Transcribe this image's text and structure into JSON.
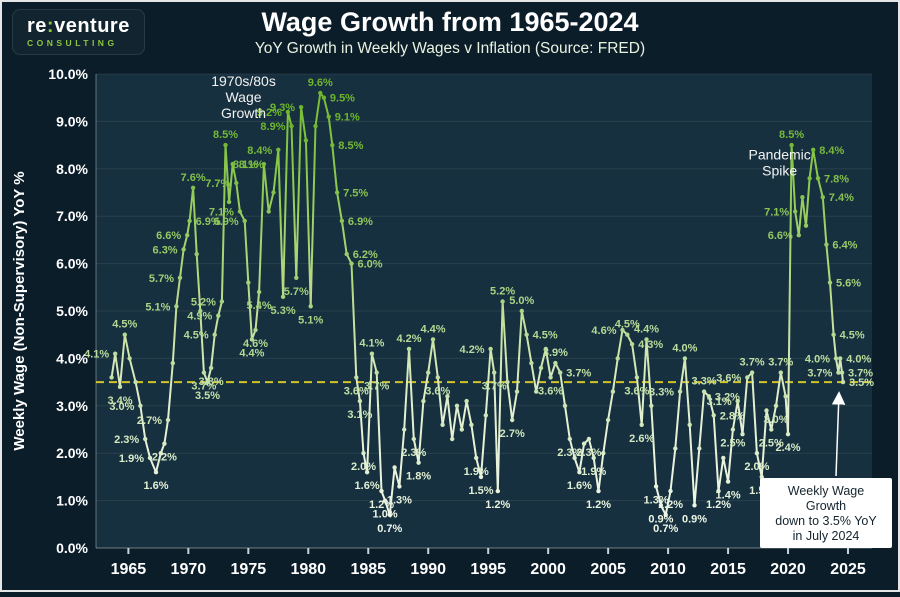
{
  "header": {
    "logo": {
      "brand_re": "re",
      "brand_colon": ":",
      "brand_venture": "venture",
      "tagline": "CONSULTING"
    },
    "title": "Wage Growth from 1965-2024",
    "subtitle": "YoY Growth in Weekly Wages v Inflation (Source: FRED)"
  },
  "chart_data": {
    "type": "line",
    "title": "Wage Growth from 1965-2024",
    "subtitle": "YoY Growth in Weekly Wages v Inflation (Source: FRED)",
    "ylabel": "Weekly Wage (Non-Supervisory) YoY %",
    "ylim": [
      0,
      10
    ],
    "y_ticks": [
      "0.0%",
      "1.0%",
      "2.0%",
      "3.0%",
      "4.0%",
      "5.0%",
      "6.0%",
      "7.0%",
      "8.0%",
      "9.0%",
      "10.0%"
    ],
    "x_ticks": [
      1965,
      1970,
      1975,
      1980,
      1985,
      1990,
      1995,
      2000,
      2005,
      2010,
      2015,
      2020,
      2025
    ],
    "x_domain": [
      1962.3,
      2027
    ],
    "grid": true,
    "legend": "none",
    "reference_line": {
      "value": 3.5,
      "style": "dashed"
    },
    "annotations": [
      {
        "id": "era-label",
        "x": 1974.6,
        "y": 9.75,
        "lines": [
          "1970s/80s",
          "Wage",
          "Growth"
        ]
      },
      {
        "id": "pandemic-label",
        "x": 2019.3,
        "y": 8.2,
        "lines": [
          "Pandemic",
          "Spike"
        ]
      }
    ],
    "callout": {
      "lines": [
        "Weekly Wage",
        "Growth",
        "down to 3.5% YoY",
        "in July 2024"
      ],
      "arrow_target": {
        "x": 2024.58,
        "y": 3.5
      }
    },
    "colors": {
      "outer_bg": "#0c1d2a",
      "plot_bg": "#17303f",
      "grid": "rgba(255,255,255,0.08)",
      "axis": "rgba(255,255,255,0.35)",
      "axis_text": "#ffffff",
      "line_low": "#f2f8ec",
      "line_high": "#72b92e",
      "ref_line": "#d4c327",
      "annotation_text": "#f2f2f2",
      "callout_bg": "#ffffff",
      "callout_text": "#15242e",
      "accent_green": "#8dc63f"
    },
    "series": [
      {
        "name": "Weekly Wage (Non-Supervisory) YoY %",
        "points": [
          [
            1963.6,
            3.6,
            0,
            0
          ],
          [
            1963.9,
            4.1,
            1,
            "l"
          ],
          [
            1964.3,
            3.4,
            1,
            "b"
          ],
          [
            1964.7,
            4.5,
            1,
            "a"
          ],
          [
            1965.1,
            4.0,
            0,
            0
          ],
          [
            1965.6,
            3.5,
            0,
            0
          ],
          [
            1966.0,
            3.0,
            1,
            "l"
          ],
          [
            1966.4,
            2.3,
            1,
            "l"
          ],
          [
            1966.8,
            1.9,
            1,
            "l"
          ],
          [
            1967.3,
            1.6,
            1,
            "b"
          ],
          [
            1967.7,
            2.0,
            0,
            0
          ],
          [
            1968.0,
            2.2,
            1,
            "b"
          ],
          [
            1968.3,
            2.7,
            1,
            "l"
          ],
          [
            1968.7,
            3.9,
            0,
            0
          ],
          [
            1969.0,
            5.1,
            1,
            "l"
          ],
          [
            1969.3,
            5.7,
            1,
            "l"
          ],
          [
            1969.6,
            6.3,
            1,
            "l"
          ],
          [
            1969.9,
            6.6,
            1,
            "l"
          ],
          [
            1970.1,
            6.9,
            1,
            "r"
          ],
          [
            1970.4,
            7.6,
            1,
            "a"
          ],
          [
            1970.7,
            6.2,
            0,
            0
          ],
          [
            1971.0,
            5.0,
            0,
            0
          ],
          [
            1971.3,
            3.7,
            1,
            "b"
          ],
          [
            1971.6,
            3.5,
            1,
            "b"
          ],
          [
            1971.9,
            3.8,
            1,
            "b"
          ],
          [
            1972.2,
            4.5,
            1,
            "l"
          ],
          [
            1972.5,
            4.9,
            1,
            "l"
          ],
          [
            1972.8,
            5.2,
            1,
            "l"
          ],
          [
            1973.1,
            8.5,
            1,
            "a"
          ],
          [
            1973.4,
            7.3,
            0,
            0
          ],
          [
            1973.7,
            8.1,
            1,
            "r"
          ],
          [
            1974.0,
            7.7,
            1,
            "l"
          ],
          [
            1974.3,
            7.1,
            1,
            "l"
          ],
          [
            1974.7,
            6.9,
            1,
            "l"
          ],
          [
            1975.0,
            5.6,
            0,
            0
          ],
          [
            1975.3,
            4.4,
            1,
            "b"
          ],
          [
            1975.6,
            4.6,
            1,
            "b"
          ],
          [
            1975.9,
            5.4,
            1,
            "b"
          ],
          [
            1976.3,
            8.1,
            1,
            "l"
          ],
          [
            1976.7,
            7.1,
            0,
            0
          ],
          [
            1977.1,
            7.5,
            0,
            0
          ],
          [
            1977.5,
            8.4,
            1,
            "l"
          ],
          [
            1977.9,
            5.3,
            1,
            "b"
          ],
          [
            1978.3,
            9.2,
            1,
            "l"
          ],
          [
            1978.6,
            8.9,
            1,
            "l"
          ],
          [
            1979.0,
            5.7,
            1,
            "b"
          ],
          [
            1979.4,
            9.3,
            1,
            "l"
          ],
          [
            1979.8,
            8.6,
            0,
            0
          ],
          [
            1980.2,
            5.1,
            1,
            "b"
          ],
          [
            1980.6,
            8.9,
            0,
            0
          ],
          [
            1981.0,
            9.6,
            1,
            "a"
          ],
          [
            1981.3,
            9.5,
            1,
            "r"
          ],
          [
            1981.7,
            9.1,
            1,
            "r"
          ],
          [
            1982.0,
            8.5,
            1,
            "r"
          ],
          [
            1982.4,
            7.5,
            1,
            "r"
          ],
          [
            1982.8,
            6.9,
            1,
            "r"
          ],
          [
            1983.2,
            6.2,
            1,
            "r"
          ],
          [
            1983.6,
            6.0,
            1,
            "r"
          ],
          [
            1984.0,
            3.6,
            1,
            "b"
          ],
          [
            1984.3,
            3.1,
            1,
            "b"
          ],
          [
            1984.6,
            2.0,
            1,
            "b"
          ],
          [
            1984.9,
            1.6,
            1,
            "b"
          ],
          [
            1985.3,
            4.1,
            1,
            "a"
          ],
          [
            1985.7,
            3.7,
            1,
            "b"
          ],
          [
            1986.1,
            1.2,
            1,
            "b"
          ],
          [
            1986.4,
            1.0,
            1,
            "b"
          ],
          [
            1986.8,
            0.7,
            1,
            "b"
          ],
          [
            1987.2,
            1.7,
            0,
            0
          ],
          [
            1987.6,
            1.3,
            1,
            "b"
          ],
          [
            1988.0,
            2.5,
            0,
            0
          ],
          [
            1988.4,
            4.2,
            1,
            "a"
          ],
          [
            1988.8,
            2.3,
            1,
            "b"
          ],
          [
            1989.2,
            1.8,
            1,
            "b"
          ],
          [
            1989.6,
            3.1,
            0,
            0
          ],
          [
            1990.0,
            3.7,
            0,
            0
          ],
          [
            1990.4,
            4.4,
            1,
            "a"
          ],
          [
            1990.8,
            3.6,
            1,
            "b"
          ],
          [
            1991.2,
            2.6,
            0,
            0
          ],
          [
            1991.6,
            3.2,
            0,
            0
          ],
          [
            1992.0,
            2.3,
            0,
            0
          ],
          [
            1992.4,
            3.0,
            0,
            0
          ],
          [
            1992.8,
            2.5,
            0,
            0
          ],
          [
            1993.2,
            3.1,
            0,
            0
          ],
          [
            1993.6,
            2.6,
            0,
            0
          ],
          [
            1994.0,
            1.9,
            1,
            "b"
          ],
          [
            1994.4,
            1.5,
            1,
            "b"
          ],
          [
            1994.8,
            2.8,
            0,
            0
          ],
          [
            1995.2,
            4.2,
            1,
            "l"
          ],
          [
            1995.5,
            3.7,
            1,
            "b"
          ],
          [
            1995.8,
            1.2,
            1,
            "b"
          ],
          [
            1996.2,
            5.2,
            1,
            "a"
          ],
          [
            1996.6,
            3.5,
            0,
            0
          ],
          [
            1997.0,
            2.7,
            1,
            "b"
          ],
          [
            1997.4,
            3.3,
            0,
            0
          ],
          [
            1997.8,
            5.0,
            1,
            "a"
          ],
          [
            1998.2,
            4.5,
            1,
            "r"
          ],
          [
            1998.6,
            3.9,
            0,
            0
          ],
          [
            1999.0,
            3.3,
            0,
            0
          ],
          [
            1999.4,
            3.8,
            0,
            0
          ],
          [
            1999.8,
            4.2,
            0,
            0
          ],
          [
            2000.2,
            3.6,
            1,
            "b"
          ],
          [
            2000.6,
            3.9,
            1,
            "a"
          ],
          [
            2001.0,
            3.7,
            1,
            "r"
          ],
          [
            2001.4,
            3.0,
            0,
            0
          ],
          [
            2001.8,
            2.3,
            1,
            "b"
          ],
          [
            2002.2,
            1.9,
            0,
            0
          ],
          [
            2002.6,
            1.6,
            1,
            "b"
          ],
          [
            2003.0,
            2.2,
            0,
            0
          ],
          [
            2003.4,
            2.3,
            1,
            "b"
          ],
          [
            2003.8,
            1.9,
            1,
            "b"
          ],
          [
            2004.2,
            1.2,
            1,
            "b"
          ],
          [
            2004.6,
            2.0,
            0,
            0
          ],
          [
            2005.0,
            2.7,
            0,
            0
          ],
          [
            2005.4,
            3.3,
            0,
            0
          ],
          [
            2005.8,
            4.0,
            0,
            0
          ],
          [
            2006.2,
            4.6,
            1,
            "l"
          ],
          [
            2006.6,
            4.5,
            1,
            "a"
          ],
          [
            2007.0,
            4.3,
            1,
            "r"
          ],
          [
            2007.4,
            3.6,
            1,
            "b"
          ],
          [
            2007.8,
            2.6,
            1,
            "b"
          ],
          [
            2008.2,
            4.4,
            1,
            "a"
          ],
          [
            2008.6,
            3.0,
            0,
            0
          ],
          [
            2009.0,
            1.3,
            1,
            "b"
          ],
          [
            2009.4,
            0.9,
            1,
            "b"
          ],
          [
            2009.8,
            0.7,
            1,
            "b"
          ],
          [
            2010.2,
            1.2,
            1,
            "b"
          ],
          [
            2010.6,
            2.1,
            0,
            0
          ],
          [
            2011.0,
            3.3,
            1,
            "l"
          ],
          [
            2011.4,
            4.0,
            1,
            "a"
          ],
          [
            2011.8,
            2.6,
            0,
            0
          ],
          [
            2012.2,
            0.9,
            1,
            "b"
          ],
          [
            2012.6,
            2.1,
            0,
            0
          ],
          [
            2013.0,
            3.3,
            1,
            "a"
          ],
          [
            2013.4,
            3.2,
            1,
            "r"
          ],
          [
            2013.8,
            2.8,
            1,
            "r"
          ],
          [
            2014.2,
            1.2,
            1,
            "b"
          ],
          [
            2014.6,
            1.9,
            0,
            0
          ],
          [
            2015.0,
            1.4,
            1,
            "b"
          ],
          [
            2015.4,
            2.5,
            1,
            "b"
          ],
          [
            2015.8,
            3.1,
            1,
            "l"
          ],
          [
            2016.2,
            2.4,
            0,
            0
          ],
          [
            2016.6,
            3.6,
            1,
            "l"
          ],
          [
            2017.0,
            3.7,
            1,
            "a"
          ],
          [
            2017.4,
            2.0,
            1,
            "b"
          ],
          [
            2017.8,
            1.5,
            1,
            "b"
          ],
          [
            2018.2,
            2.9,
            0,
            0
          ],
          [
            2018.6,
            2.5,
            1,
            "b"
          ],
          [
            2019.0,
            3.0,
            1,
            "b"
          ],
          [
            2019.4,
            3.7,
            1,
            "a"
          ],
          [
            2019.8,
            3.2,
            0,
            0
          ],
          [
            2020.0,
            2.4,
            1,
            "b"
          ],
          [
            2020.3,
            8.5,
            1,
            "a"
          ],
          [
            2020.6,
            7.1,
            1,
            "l"
          ],
          [
            2020.9,
            6.6,
            1,
            "l"
          ],
          [
            2021.2,
            7.4,
            0,
            0
          ],
          [
            2021.5,
            6.8,
            0,
            0
          ],
          [
            2021.8,
            7.8,
            0,
            0
          ],
          [
            2022.1,
            8.4,
            1,
            "r"
          ],
          [
            2022.5,
            7.8,
            1,
            "r"
          ],
          [
            2022.9,
            7.4,
            1,
            "r"
          ],
          [
            2023.2,
            6.4,
            1,
            "r"
          ],
          [
            2023.5,
            5.6,
            1,
            "r"
          ],
          [
            2023.8,
            4.5,
            1,
            "r"
          ],
          [
            2024.0,
            4.0,
            1,
            "l"
          ],
          [
            2024.2,
            3.7,
            1,
            "l"
          ],
          [
            2024.35,
            4.0,
            1,
            "r"
          ],
          [
            2024.5,
            3.7,
            1,
            "r"
          ],
          [
            2024.58,
            3.5,
            1,
            "r"
          ]
        ]
      }
    ]
  }
}
